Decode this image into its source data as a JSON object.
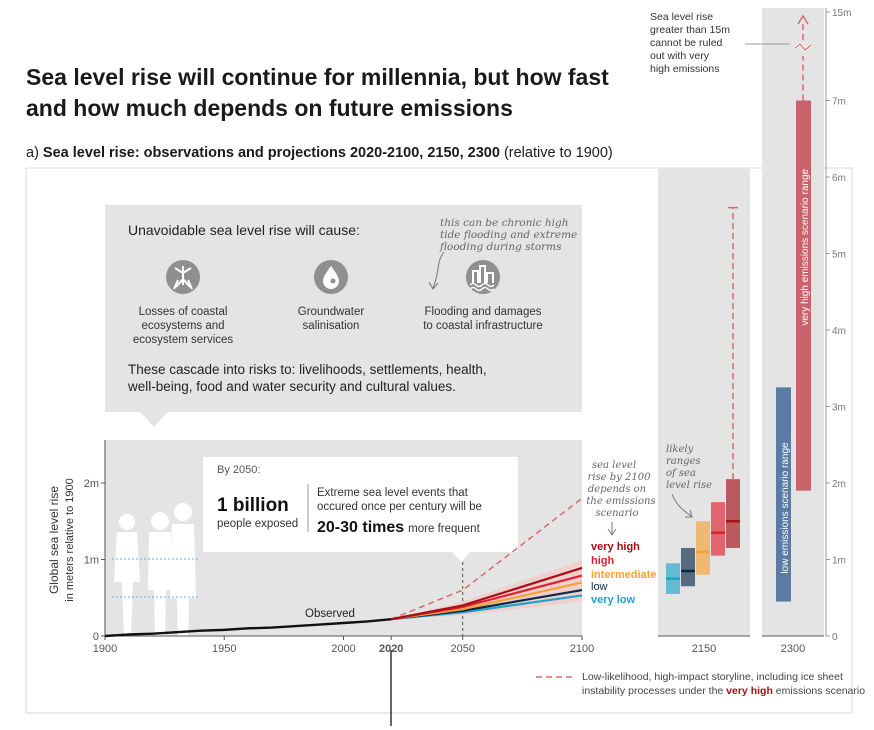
{
  "title": "Sea level rise will continue for millennia, but how fast and how much depends on future emissions",
  "subtitle": {
    "prefix": "a) ",
    "bold": "Sea level rise: observations and projections 2020-2100, 2150, 2300",
    "suffix": " (relative to 1900)"
  },
  "callout": {
    "heading": "Unavoidable sea level rise will cause:",
    "items": [
      {
        "icon": "mangrove-icon",
        "label_lines": [
          "Losses of coastal",
          "ecosystems and",
          "ecosystem services"
        ]
      },
      {
        "icon": "water-drop-icon",
        "label_lines": [
          "Groundwater",
          "salinisation"
        ]
      },
      {
        "icon": "flooded-buildings-icon",
        "label_lines": [
          "Flooding and damages",
          "to coastal infrastructure"
        ]
      }
    ],
    "handnote_lines": [
      "this can be chronic high",
      "tide flooding and extreme",
      "flooding during storms"
    ],
    "cascade_lines": [
      "These cascade into risks to: livelihoods, settlements, health,",
      "well-being, food and water security and cultural values."
    ]
  },
  "by2050": {
    "heading": "By 2050:",
    "big_number": "1 billion",
    "big_number_label": "people exposed",
    "events_lines": [
      "Extreme sea level events that",
      "occured once per century will be"
    ],
    "frequency": "20-30 times",
    "frequency_suffix": "more frequent"
  },
  "annotations": {
    "by2100_lines": [
      "sea level",
      "rise by 2100",
      "depends on",
      "the emissions",
      "scenario"
    ],
    "likely_lines": [
      "likely",
      "ranges",
      "of sea",
      "level rise"
    ],
    "top_note_lines": [
      "Sea level rise",
      "greater than 15m",
      "cannot be ruled",
      "out with very",
      "high emissions"
    ],
    "observed_label": "Observed",
    "low_range_label": "low emissions scenario range",
    "very_high_range_label": "very high emissions scenario range"
  },
  "legend": {
    "line1": "Low-likelihood, high-impact storyline, including ice sheet",
    "line2_prefix": "instability processes under the ",
    "line2_bold": "very high",
    "line2_suffix": " emissions scenario"
  },
  "colors": {
    "very_high": "#a50f15",
    "high": "#e0202e",
    "intermediate": "#f4a234",
    "low": "#0b2a4a",
    "very_low": "#1fa3c9",
    "observed": "#111111",
    "panel_bg": "#e4e4e4",
    "low_range": "#5a7ba3",
    "very_high_range": "#c9636b",
    "storyline": "#d86b6b"
  },
  "chart_data": [
    {
      "type": "line",
      "x_range": [
        1900,
        2100
      ],
      "y_range": [
        0,
        2.3
      ],
      "ylabel": "Global sea level rise",
      "ylabel_sub": "in meters relative to 1900",
      "x_ticks": [
        "1900",
        "1950",
        "2000",
        "2020",
        "2050",
        "2100"
      ],
      "y_ticks": [
        "0",
        "1m",
        "2m"
      ],
      "observed": {
        "name": "Observed",
        "x": [
          1900,
          1910,
          1920,
          1930,
          1940,
          1950,
          1960,
          1970,
          1980,
          1990,
          2000,
          2010,
          2020
        ],
        "y": [
          0.0,
          0.02,
          0.03,
          0.05,
          0.07,
          0.08,
          0.1,
          0.11,
          0.13,
          0.15,
          0.17,
          0.19,
          0.22
        ]
      },
      "series": [
        {
          "name": "very high",
          "color_key": "very_high",
          "x": [
            2020,
            2050,
            2100
          ],
          "y": [
            0.22,
            0.4,
            0.89
          ]
        },
        {
          "name": "high",
          "color_key": "high",
          "x": [
            2020,
            2050,
            2100
          ],
          "y": [
            0.22,
            0.38,
            0.79
          ]
        },
        {
          "name": "intermediate",
          "color_key": "intermediate",
          "x": [
            2020,
            2050,
            2100
          ],
          "y": [
            0.22,
            0.35,
            0.7
          ]
        },
        {
          "name": "low",
          "color_key": "low",
          "x": [
            2020,
            2050,
            2100
          ],
          "y": [
            0.22,
            0.33,
            0.6
          ]
        },
        {
          "name": "very low",
          "color_key": "very_low",
          "x": [
            2020,
            2050,
            2100
          ],
          "y": [
            0.22,
            0.31,
            0.53
          ]
        }
      ],
      "storyline": {
        "x": [
          2020,
          2050,
          2100
        ],
        "y": [
          0.22,
          0.6,
          1.8
        ]
      }
    },
    {
      "type": "bar",
      "year": "2150",
      "ranges": [
        {
          "scenario": "very low",
          "color_key": "very_low",
          "low": 0.55,
          "high": 0.95,
          "median": 0.75
        },
        {
          "scenario": "low",
          "color_key": "low",
          "low": 0.65,
          "high": 1.15,
          "median": 0.85
        },
        {
          "scenario": "intermediate",
          "color_key": "intermediate",
          "low": 0.8,
          "high": 1.5,
          "median": 1.1
        },
        {
          "scenario": "high",
          "color_key": "high",
          "low": 1.05,
          "high": 1.75,
          "median": 1.35
        },
        {
          "scenario": "very high",
          "color_key": "very_high",
          "low": 1.15,
          "high": 2.05,
          "median": 1.5
        }
      ],
      "storyline_top": 5.6
    },
    {
      "type": "bar",
      "year": "2300",
      "y_ticks": [
        "0",
        "1m",
        "2m",
        "3m",
        "4m",
        "5m",
        "6m",
        "7m",
        "15m"
      ],
      "ranges": [
        {
          "scenario": "low emissions",
          "color_key": "low_range",
          "low": 0.45,
          "high": 3.25
        },
        {
          "scenario": "very high emissions",
          "color_key": "very_high_range",
          "low": 1.9,
          "high": 7.0
        }
      ],
      "storyline_top": 15
    }
  ]
}
